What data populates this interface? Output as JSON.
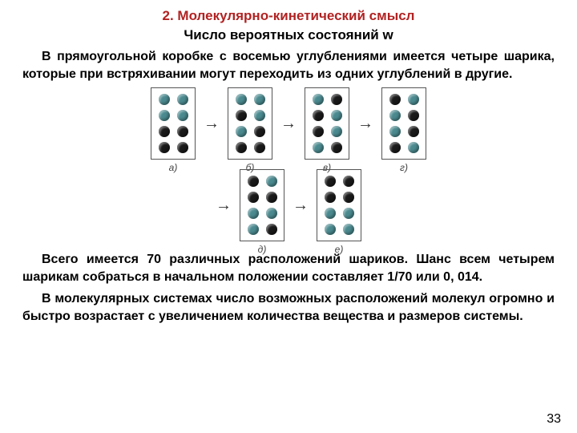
{
  "title": "2. Молекулярно-кинетический смысл",
  "subtitle": "Число вероятных состояний w",
  "para1": "В прямоугольной коробке с восемью углублениями имеется четыре шарика, которые при встряхивании могут переходить из одних углублений в другие.",
  "para2": "Всего имеется 70 различных расположений шариков. Шанс всем четырем шарикам собраться в начальном положении составляет 1/70 или 0, 014.",
  "para3": "В молекулярных системах число возможных расположений молекул огромно и быстро возрастает с увеличением количества вещества и размеров системы.",
  "page_num": "33",
  "colors": {
    "title": "#b22222",
    "teal": "#4a8a8f",
    "black": "#1a1a1a"
  },
  "boxes_row1": [
    {
      "label": "а)",
      "cells": [
        "teal",
        "teal",
        "teal",
        "teal",
        "black",
        "black",
        "black",
        "black"
      ]
    },
    {
      "label": "б)",
      "cells": [
        "teal",
        "teal",
        "black",
        "teal",
        "teal",
        "black",
        "black",
        "black"
      ]
    },
    {
      "label": "в)",
      "cells": [
        "teal",
        "black",
        "black",
        "teal",
        "black",
        "teal",
        "teal",
        "black"
      ]
    },
    {
      "label": "г)",
      "cells": [
        "black",
        "teal",
        "teal",
        "black",
        "teal",
        "black",
        "black",
        "teal"
      ]
    }
  ],
  "boxes_row2": [
    {
      "label": "д)",
      "cells": [
        "black",
        "teal",
        "black",
        "black",
        "teal",
        "teal",
        "teal",
        "black"
      ]
    },
    {
      "label": "е)",
      "cells": [
        "black",
        "black",
        "black",
        "black",
        "teal",
        "teal",
        "teal",
        "teal"
      ]
    }
  ]
}
